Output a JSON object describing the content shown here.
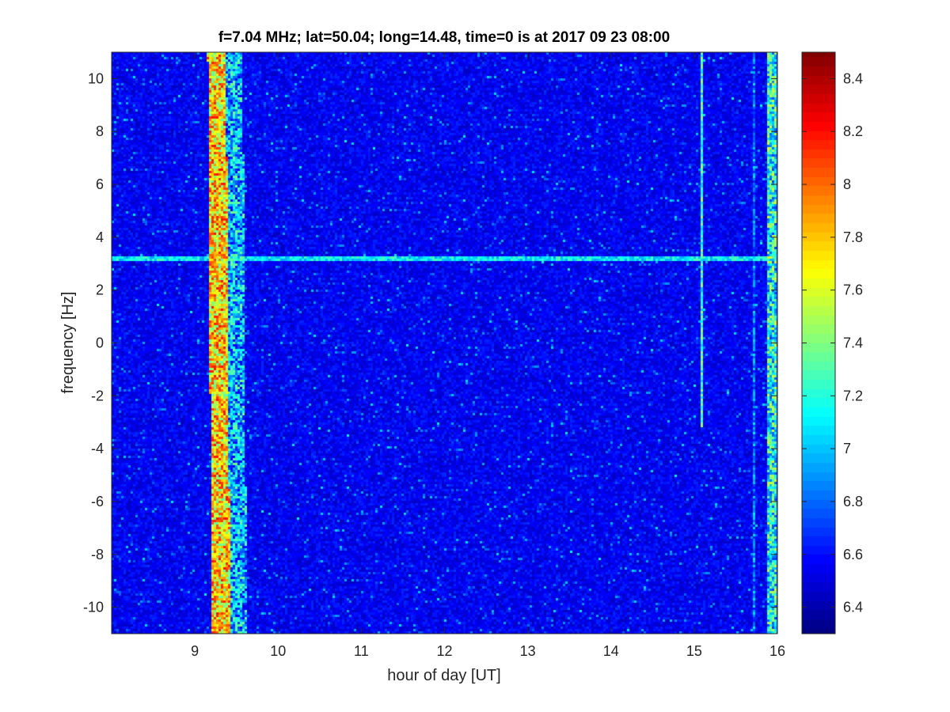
{
  "figure": {
    "background": "#ffffff"
  },
  "chart_data": {
    "type": "heatmap",
    "title": "f=7.04 MHz;  lat=50.04; long=14.48, time=0 is at 2017 09 23 08:00",
    "xlabel": "hour of day [UT]",
    "ylabel": "frequency [Hz]",
    "xlim": [
      8,
      16
    ],
    "ylim": [
      -11,
      11
    ],
    "x_ticks": [
      9,
      10,
      11,
      12,
      13,
      14,
      15,
      16
    ],
    "x_tick_labels": [
      "9",
      "10",
      "11",
      "12",
      "13",
      "14",
      "15",
      "16"
    ],
    "y_ticks": [
      -10,
      -8,
      -6,
      -4,
      -2,
      0,
      2,
      4,
      6,
      8,
      10
    ],
    "y_tick_labels": [
      "-10",
      "-8",
      "-6",
      "-4",
      "-2",
      "0",
      "2",
      "4",
      "6",
      "8",
      "10"
    ],
    "colorbar": {
      "colormap": "jet",
      "range": [
        6.3,
        8.5
      ],
      "ticks": [
        6.4,
        6.6,
        6.8,
        7.0,
        7.2,
        7.4,
        7.6,
        7.8,
        8.0,
        8.2,
        8.4
      ],
      "tick_labels": [
        "6.4",
        "6.6",
        "6.8",
        "7",
        "7.2",
        "7.4",
        "7.6",
        "7.8",
        "8",
        "8.2",
        "8.4"
      ]
    },
    "background_level": 6.55,
    "features": [
      {
        "kind": "vertical_band",
        "x_start": 9.18,
        "x_end": 9.4,
        "level": 8.2
      },
      {
        "kind": "vertical_band",
        "x_start": 9.4,
        "x_end": 9.6,
        "level": 7.4
      },
      {
        "kind": "horizontal_line",
        "y": 3.2,
        "x_start": 8.0,
        "x_end": 16.0,
        "level": 7.3
      },
      {
        "kind": "vertical_line",
        "x": 15.08,
        "y_start": -3.2,
        "y_end": 11,
        "level": 7.5
      },
      {
        "kind": "vertical_line",
        "x": 15.72,
        "y_start": -11,
        "y_end": 11,
        "level": 7.1
      },
      {
        "kind": "vertical_band",
        "x_start": 15.88,
        "x_end": 15.98,
        "level": 7.6
      }
    ],
    "grid": false
  }
}
